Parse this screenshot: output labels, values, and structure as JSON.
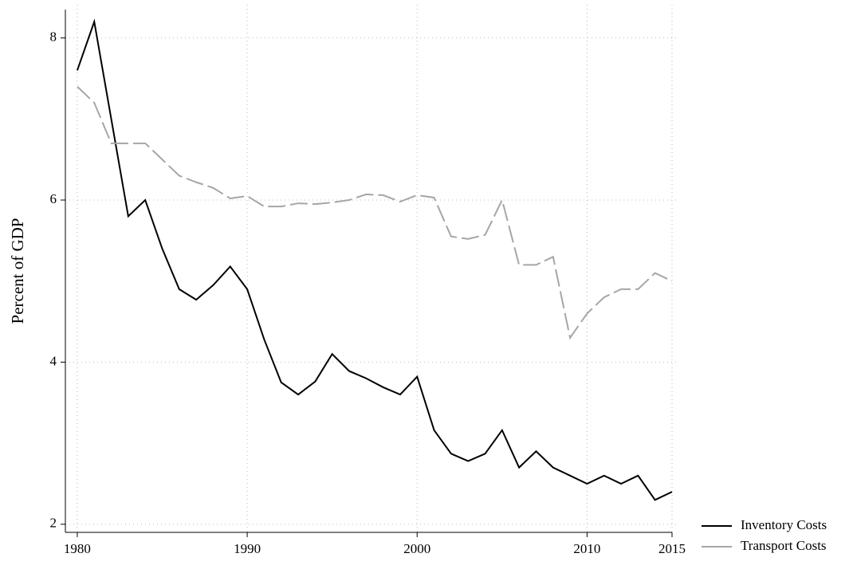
{
  "chart_data": {
    "type": "line",
    "y_label": "Percent of GDP",
    "x": [
      1980,
      1981,
      1982,
      1983,
      1984,
      1985,
      1986,
      1987,
      1988,
      1989,
      1990,
      1991,
      1992,
      1993,
      1994,
      1995,
      1996,
      1997,
      1998,
      1999,
      2000,
      2001,
      2002,
      2003,
      2004,
      2005,
      2006,
      2007,
      2008,
      2009,
      2010,
      2011,
      2012,
      2013,
      2014,
      2015
    ],
    "series": [
      {
        "name": "Inventory Costs",
        "color": "#000000",
        "dash": false,
        "values": [
          7.6,
          8.2,
          7.0,
          5.8,
          6.0,
          5.4,
          4.9,
          4.77,
          4.95,
          5.18,
          4.9,
          4.28,
          3.75,
          3.6,
          3.76,
          4.1,
          3.89,
          3.8,
          3.69,
          3.6,
          3.82,
          3.16,
          2.87,
          2.78,
          2.87,
          3.16,
          2.7,
          2.9,
          2.7,
          2.6,
          2.5,
          2.6,
          2.5,
          2.6,
          2.3,
          2.4
        ]
      },
      {
        "name": "Transport Costs",
        "color": "#a6a6a6",
        "dash": true,
        "values": [
          7.4,
          7.2,
          6.7,
          6.7,
          6.7,
          6.5,
          6.3,
          6.22,
          6.15,
          6.02,
          6.05,
          5.92,
          5.92,
          5.96,
          5.95,
          5.97,
          6.0,
          6.07,
          6.06,
          5.98,
          6.06,
          6.03,
          5.55,
          5.52,
          5.57,
          6.0,
          5.2,
          5.2,
          5.3,
          4.3,
          4.6,
          4.8,
          4.9,
          4.9,
          5.1,
          5.0
        ]
      }
    ],
    "xlim": [
      1979.3,
      2015
    ],
    "xticks": [
      1980,
      1990,
      2000,
      2010,
      2015
    ],
    "ylim": [
      1.9,
      8.35
    ],
    "yticks": [
      2,
      4,
      6,
      8
    ],
    "grid": true,
    "legend": "bottom-right"
  }
}
